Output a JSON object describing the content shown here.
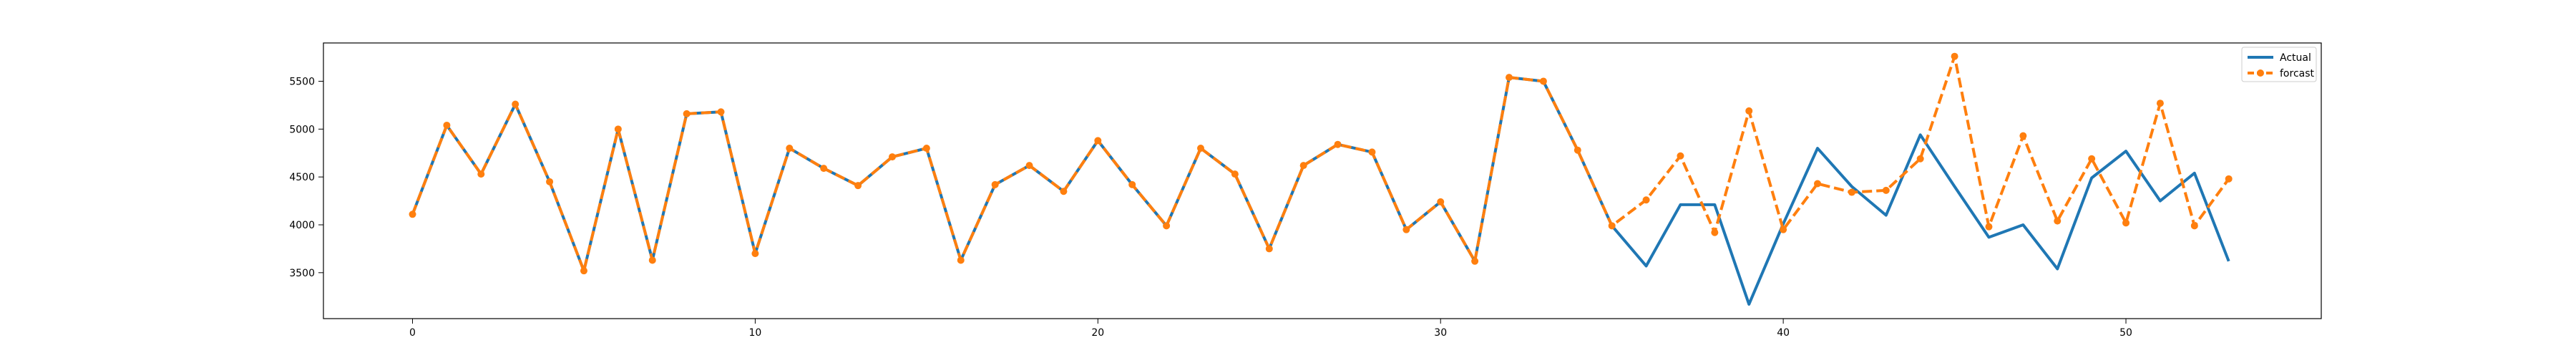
{
  "chart_data": {
    "type": "line",
    "title": "",
    "xlabel": "",
    "ylabel": "",
    "xlim": [
      -2.6,
      55.7
    ],
    "ylim": [
      3020,
      5900
    ],
    "x_ticks": [
      0,
      10,
      20,
      30,
      40,
      50
    ],
    "y_ticks": [
      3500,
      4000,
      4500,
      5000,
      5500
    ],
    "grid": false,
    "legend": "top-right",
    "series": [
      {
        "name": "Actual",
        "color": "#1f77b4",
        "line_style": "solid",
        "marker": "none",
        "x": [
          0,
          1,
          2,
          3,
          4,
          5,
          6,
          7,
          8,
          9,
          10,
          11,
          12,
          13,
          14,
          15,
          16,
          17,
          18,
          19,
          20,
          21,
          22,
          23,
          24,
          25,
          26,
          27,
          28,
          29,
          30,
          31,
          32,
          33,
          34,
          35,
          36,
          37,
          38,
          39,
          40,
          41,
          42,
          43,
          44,
          45,
          46,
          47,
          48,
          49,
          50,
          51,
          52,
          53
        ],
        "values": [
          4110,
          5040,
          4530,
          5260,
          4450,
          3520,
          5000,
          3630,
          5160,
          5180,
          3700,
          4800,
          4590,
          4410,
          4710,
          4800,
          3630,
          4420,
          4620,
          4350,
          4880,
          4420,
          3990,
          4800,
          4530,
          3750,
          4620,
          4840,
          4760,
          3950,
          4240,
          3620,
          5540,
          5500,
          4780,
          3990,
          3570,
          4210,
          4210,
          3170,
          4010,
          4800,
          4400,
          4100,
          4940,
          4400,
          3870,
          4000,
          3540,
          4490,
          4770,
          4250,
          4540,
          3620
        ]
      },
      {
        "name": "forcast",
        "color": "#ff7f0e",
        "line_style": "dashed",
        "marker": "circle",
        "x": [
          0,
          1,
          2,
          3,
          4,
          5,
          6,
          7,
          8,
          9,
          10,
          11,
          12,
          13,
          14,
          15,
          16,
          17,
          18,
          19,
          20,
          21,
          22,
          23,
          24,
          25,
          26,
          27,
          28,
          29,
          30,
          31,
          32,
          33,
          34,
          35,
          36,
          37,
          38,
          39,
          40,
          41,
          42,
          43,
          44,
          45,
          46,
          47,
          48,
          49,
          50,
          51,
          52,
          53
        ],
        "values": [
          4110,
          5040,
          4530,
          5260,
          4450,
          3520,
          5000,
          3630,
          5160,
          5180,
          3700,
          4800,
          4590,
          4410,
          4710,
          4800,
          3630,
          4420,
          4620,
          4350,
          4880,
          4420,
          3990,
          4800,
          4530,
          3750,
          4620,
          4840,
          4760,
          3950,
          4240,
          3620,
          5540,
          5500,
          4780,
          3990,
          4260,
          4720,
          3920,
          5190,
          3950,
          4430,
          4340,
          4360,
          4690,
          5760,
          3980,
          4930,
          4040,
          4690,
          4020,
          5270,
          3990,
          4480
        ]
      }
    ]
  }
}
